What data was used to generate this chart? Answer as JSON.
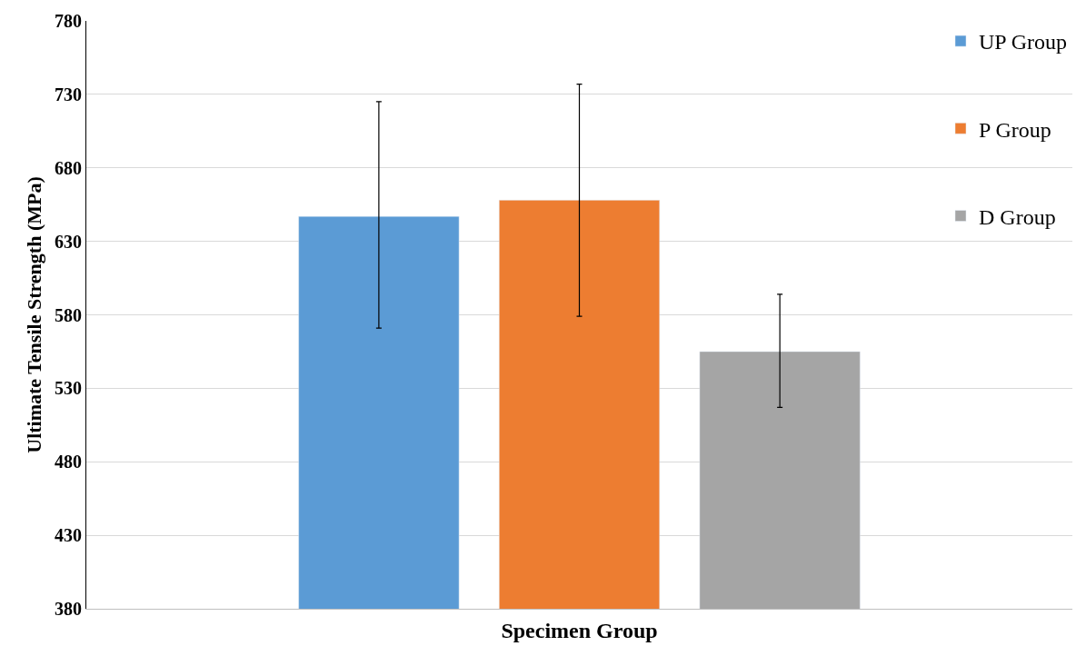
{
  "chart_data": {
    "type": "bar",
    "xlabel": "Specimen Group",
    "ylabel": "Ultimate Tensile Strength (MPa)",
    "categories": [
      null
    ],
    "series": [
      {
        "name": "UP Group",
        "color": "#5b9bd5",
        "values": [
          647
        ],
        "errors": [
          [
            571,
            725
          ]
        ]
      },
      {
        "name": "P Group",
        "color": "#ed7d31",
        "values": [
          658
        ],
        "errors": [
          [
            579,
            737
          ]
        ]
      },
      {
        "name": "D Group",
        "color": "#a5a5a5",
        "values": [
          555
        ],
        "errors": [
          [
            517,
            594
          ]
        ]
      }
    ],
    "ylim": [
      380,
      780
    ],
    "yticks": [
      380,
      430,
      480,
      530,
      580,
      630,
      680,
      730,
      780
    ],
    "grid": "y",
    "legend": "top right"
  }
}
